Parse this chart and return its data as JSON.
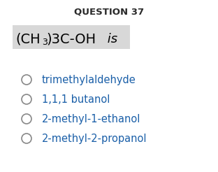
{
  "title": "QUESTION 37",
  "options": [
    "trimethylaldehyde",
    "1,1,1 butanol",
    "2-methyl-1-ethanol",
    "2-methyl-2-propanol"
  ],
  "bg_color": "#ffffff",
  "highlight_color": "#d8d8d8",
  "title_color": "#2a2a2a",
  "option_color": "#1a5fa8",
  "circle_color": "#888888",
  "title_fontsize": 9.5,
  "formula_fontsize": 14,
  "option_fontsize": 10.5
}
